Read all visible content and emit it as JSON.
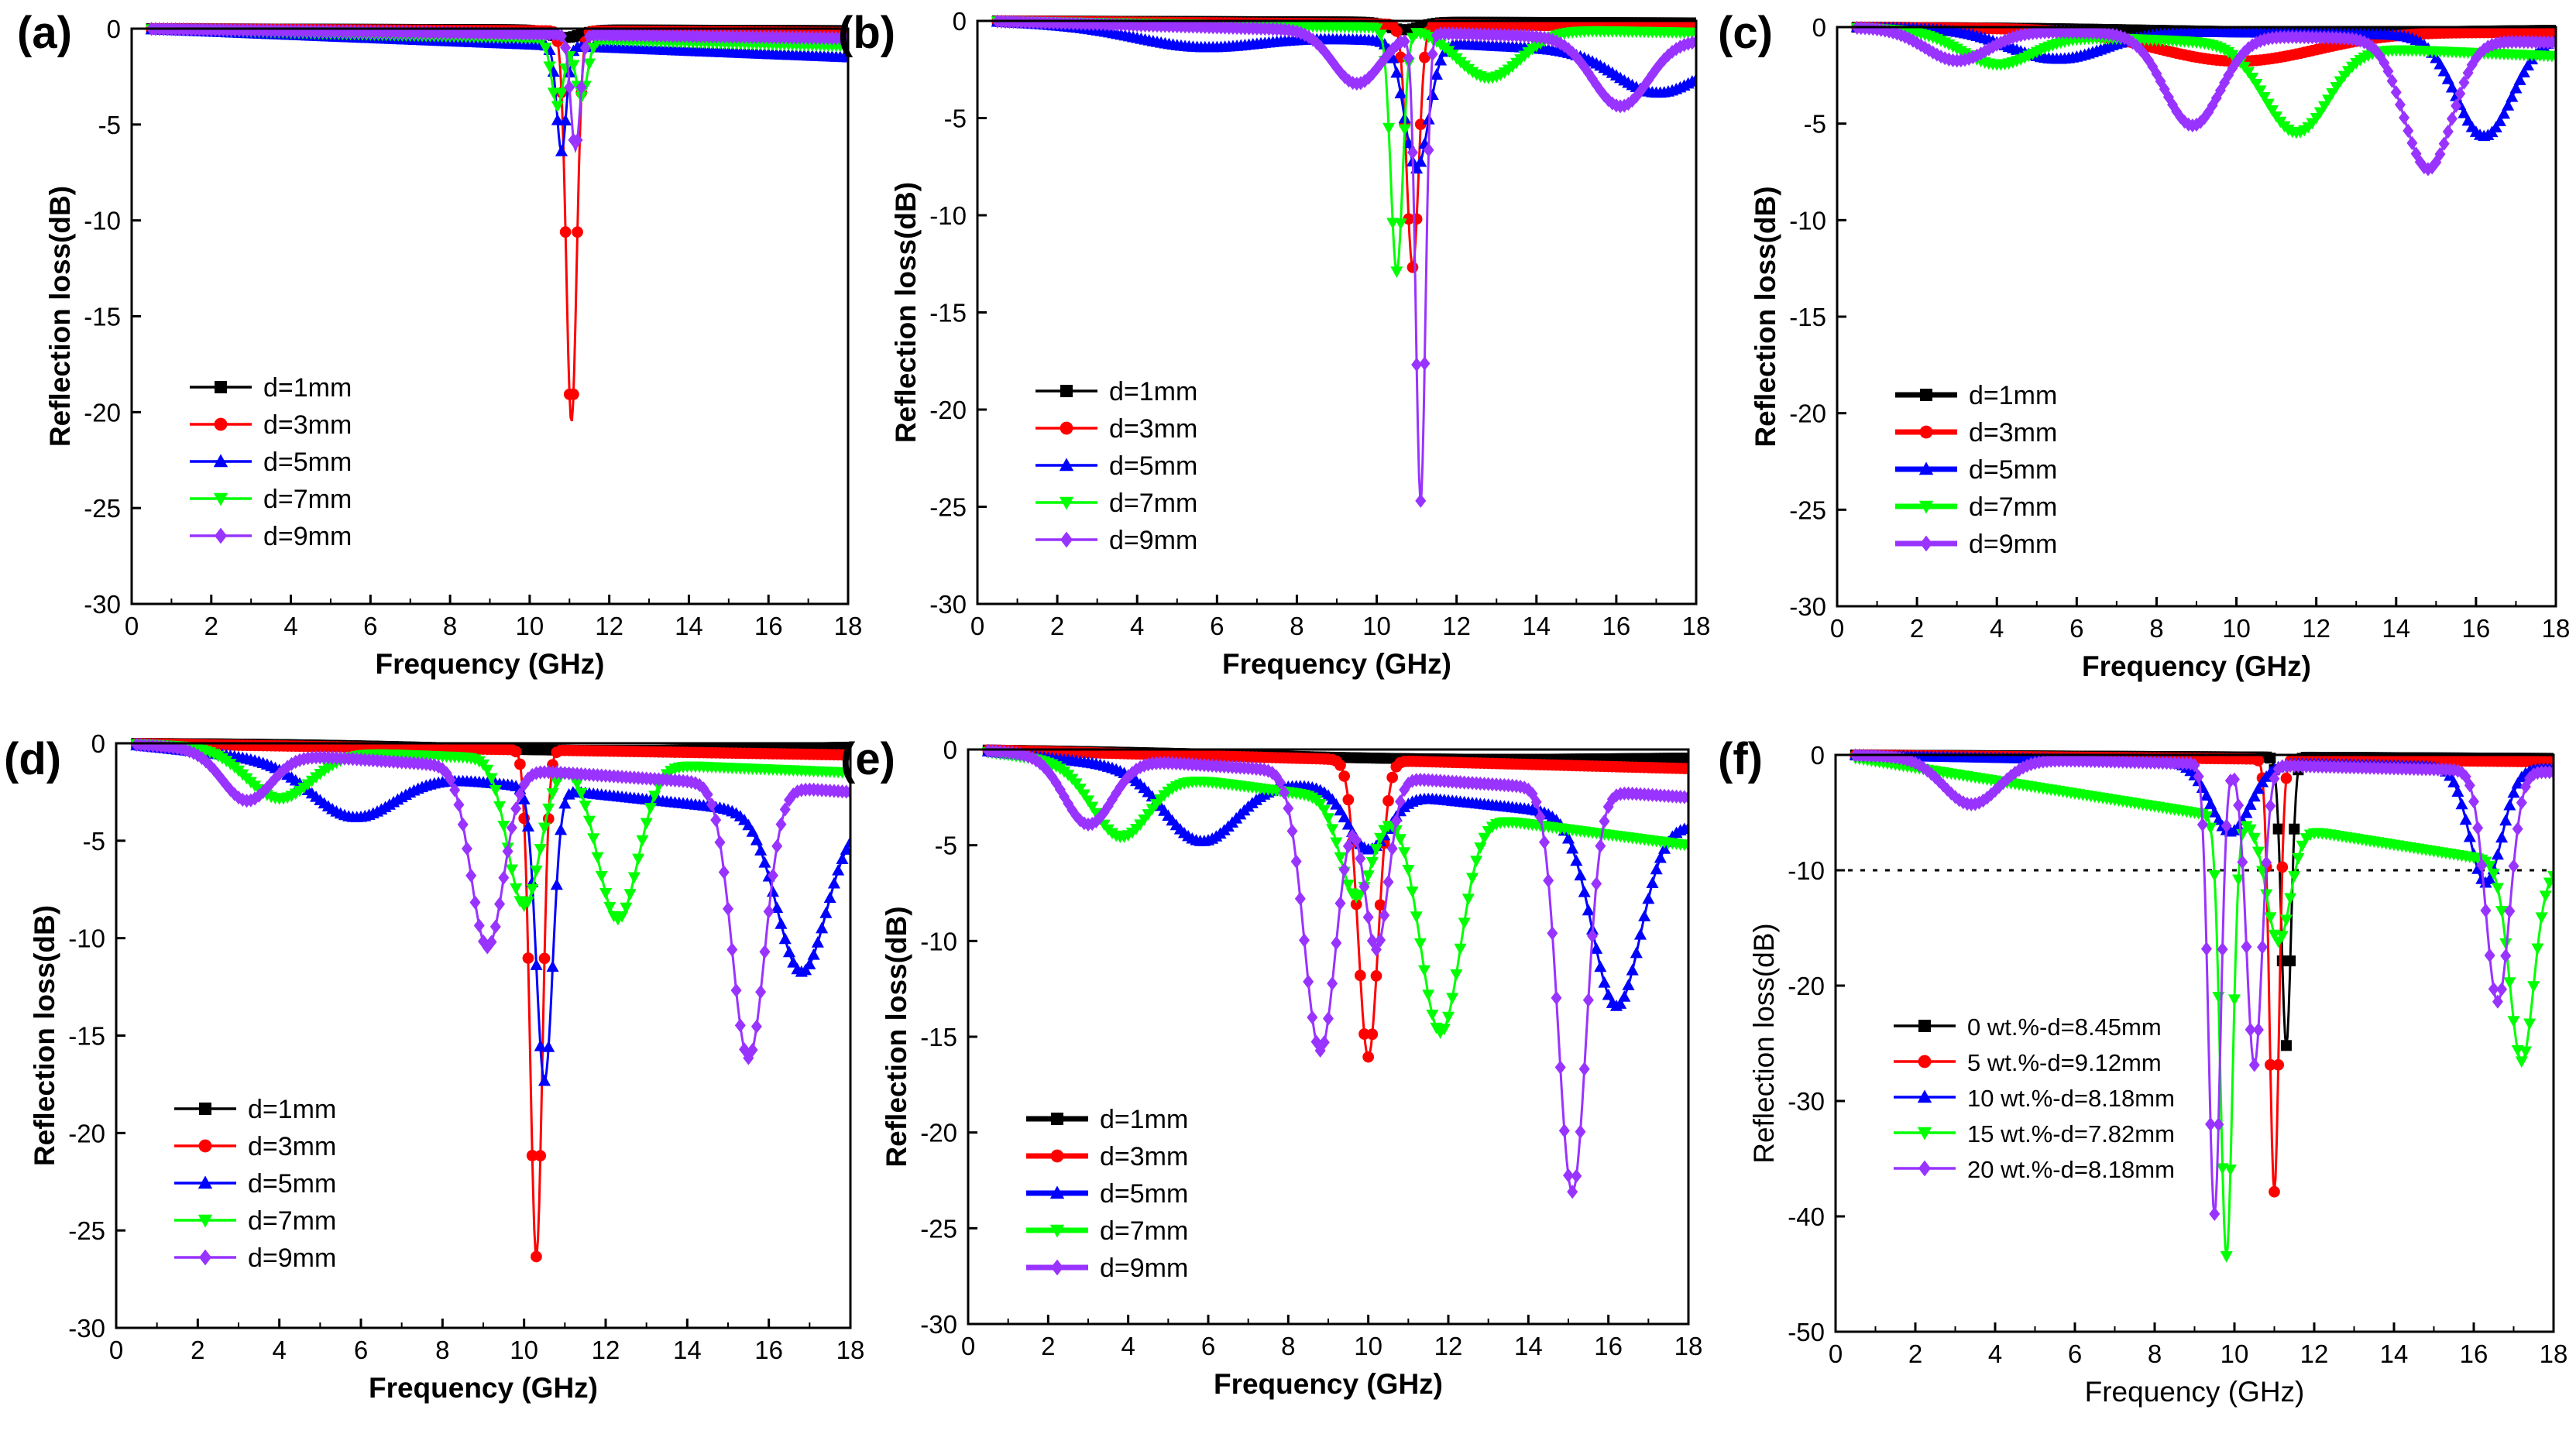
{
  "colors": {
    "d1": "#000000",
    "d3": "#ff0000",
    "d5": "#0000ff",
    "d7": "#00ff00",
    "d9": "#9933ff"
  },
  "chart_data": [
    {
      "panel": "(a)",
      "type": "line",
      "xlabel": "Frequency (GHz)",
      "ylabel": "Reflection loss(dB)",
      "xlim": [
        0,
        18
      ],
      "ylim": [
        -30,
        0
      ],
      "yticks": [
        0,
        -5,
        -10,
        -15,
        -20,
        -25,
        -30
      ],
      "xticks": [
        0,
        2,
        4,
        6,
        8,
        10,
        12,
        14,
        16,
        18
      ],
      "legend": "center-left",
      "series": [
        {
          "name": "d=1mm",
          "color": "#000000",
          "marker": "square",
          "dips": [
            [
              10.9,
              0.4,
              0.4
            ]
          ],
          "end": -0.1
        },
        {
          "name": "d=3mm",
          "color": "#ff0000",
          "marker": "circle",
          "dips": [
            [
              11.05,
              20.4,
              0.13
            ]
          ],
          "end": -0.2
        },
        {
          "name": "d=5mm",
          "color": "#0000ff",
          "marker": "triangle-up",
          "dips": [
            [
              10.8,
              5.5,
              0.12
            ]
          ],
          "end": -1.5
        },
        {
          "name": "d=7mm",
          "color": "#00ff00",
          "marker": "triangle-down",
          "dips": [
            [
              10.7,
              3.5,
              0.15
            ],
            [
              11.3,
              3.0,
              0.15
            ]
          ],
          "end": -0.9
        },
        {
          "name": "d=9mm",
          "color": "#9933ff",
          "marker": "diamond",
          "dips": [
            [
              11.15,
              6.0,
              0.12
            ]
          ],
          "end": -0.5
        }
      ]
    },
    {
      "panel": "(b)",
      "type": "line",
      "xlabel": "Frequency (GHz)",
      "ylabel": "Reflection loss(dB)",
      "xlim": [
        0,
        18
      ],
      "ylim": [
        -30,
        0
      ],
      "yticks": [
        0,
        -5,
        -10,
        -15,
        -20,
        -25,
        -30
      ],
      "xticks": [
        0,
        2,
        4,
        6,
        8,
        10,
        12,
        14,
        16,
        18
      ],
      "legend": "center-left",
      "series": [
        {
          "name": "d=1mm",
          "color": "#000000",
          "marker": "square",
          "dips": [
            [
              10.7,
              0.4,
              0.4
            ]
          ],
          "end": -0.1
        },
        {
          "name": "d=3mm",
          "color": "#ff0000",
          "marker": "circle",
          "dips": [
            [
              10.9,
              12.5,
              0.15
            ]
          ],
          "end": -0.3
        },
        {
          "name": "d=5mm",
          "color": "#0000ff",
          "marker": "triangle-up",
          "dips": [
            [
              5.5,
              0.8,
              1.5
            ],
            [
              11.0,
              6.5,
              0.3
            ],
            [
              17.0,
              2.0,
              1.0
            ]
          ],
          "end": -1.8
        },
        {
          "name": "d=7mm",
          "color": "#00ff00",
          "marker": "triangle-down",
          "dips": [
            [
              10.5,
              12.5,
              0.15
            ],
            [
              12.8,
              2.5,
              0.8
            ]
          ],
          "end": -0.6
        },
        {
          "name": "d=9mm",
          "color": "#9933ff",
          "marker": "diamond",
          "dips": [
            [
              9.5,
              2.7,
              0.6
            ],
            [
              11.1,
              24.0,
              0.12
            ],
            [
              16.1,
              3.5,
              0.7
            ]
          ],
          "end": -1.0
        }
      ]
    },
    {
      "panel": "(c)",
      "type": "line",
      "xlabel": "Frequency (GHz)",
      "ylabel": "Reflection loss(dB)",
      "xlim": [
        0,
        18
      ],
      "ylim": [
        -30,
        0
      ],
      "yticks": [
        0,
        -5,
        -10,
        -15,
        -20,
        -25,
        -30
      ],
      "xticks": [
        0,
        2,
        4,
        6,
        8,
        10,
        12,
        14,
        16,
        18
      ],
      "legend": "center-left",
      "series": [
        {
          "name": "d=1mm",
          "color": "#000000",
          "marker": "square",
          "dips": [
            [
              12.0,
              0.2,
              4.0
            ]
          ],
          "end": -0.1
        },
        {
          "name": "d=3mm",
          "color": "#ff0000",
          "marker": "circle",
          "dips": [
            [
              10.0,
              1.6,
              2.0
            ]
          ],
          "end": -0.3
        },
        {
          "name": "d=5mm",
          "color": "#0000ff",
          "marker": "triangle-up",
          "dips": [
            [
              5.5,
              1.5,
              1.2
            ],
            [
              16.2,
              5.2,
              0.7
            ]
          ],
          "end": -0.5
        },
        {
          "name": "d=7mm",
          "color": "#00ff00",
          "marker": "triangle-down",
          "dips": [
            [
              4.0,
              1.6,
              0.9
            ],
            [
              11.5,
              4.5,
              0.8
            ]
          ],
          "end": -1.5
        },
        {
          "name": "d=9mm",
          "color": "#9933ff",
          "marker": "diamond",
          "dips": [
            [
              3.0,
              1.6,
              0.8
            ],
            [
              8.9,
              4.7,
              0.7
            ],
            [
              14.8,
              6.7,
              0.6
            ]
          ],
          "end": -0.8
        }
      ]
    },
    {
      "panel": "(d)",
      "type": "line",
      "xlabel": "Frequency (GHz)",
      "ylabel": "Reflection loss(dB)",
      "xlim": [
        0,
        18
      ],
      "ylim": [
        -30,
        0
      ],
      "yticks": [
        0,
        -5,
        -10,
        -15,
        -20,
        -25,
        -30
      ],
      "xticks": [
        0,
        2,
        4,
        6,
        8,
        10,
        12,
        14,
        16,
        18
      ],
      "legend": "bottom-left",
      "series": [
        {
          "name": "d=1mm",
          "color": "#000000",
          "marker": "square",
          "dips": [
            [
              12.0,
              0.3,
              4.0
            ]
          ],
          "end": -0.1
        },
        {
          "name": "d=3mm",
          "color": "#ff0000",
          "marker": "circle",
          "dips": [
            [
              10.3,
              26.0,
              0.15
            ]
          ],
          "end": -0.6
        },
        {
          "name": "d=5mm",
          "color": "#0000ff",
          "marker": "triangle-up",
          "dips": [
            [
              5.8,
              2.5,
              1.0
            ],
            [
              10.5,
              15.0,
              0.2
            ],
            [
              16.8,
              8.0,
              0.6
            ]
          ],
          "end": -4.0
        },
        {
          "name": "d=7mm",
          "color": "#00ff00",
          "marker": "triangle-down",
          "dips": [
            [
              4.0,
              2.5,
              0.8
            ],
            [
              10.0,
              7.5,
              0.4
            ],
            [
              12.3,
              8.0,
              0.5
            ]
          ],
          "end": -1.5
        },
        {
          "name": "d=9mm",
          "color": "#9933ff",
          "marker": "diamond",
          "dips": [
            [
              3.2,
              2.5,
              0.6
            ],
            [
              9.1,
              9.2,
              0.4
            ],
            [
              15.5,
              14.0,
              0.4
            ]
          ],
          "end": -2.5
        }
      ]
    },
    {
      "panel": "(e)",
      "type": "line",
      "xlabel": "Frequency (GHz)",
      "ylabel": "Reflection loss(dB)",
      "xlim": [
        0,
        18
      ],
      "ylim": [
        -30,
        0
      ],
      "yticks": [
        0,
        -5,
        -10,
        -15,
        -20,
        -25,
        -30
      ],
      "xticks": [
        0,
        2,
        4,
        6,
        8,
        10,
        12,
        14,
        16,
        18
      ],
      "legend": "bottom-left",
      "series": [
        {
          "name": "d=1mm",
          "color": "#000000",
          "marker": "square",
          "dips": [
            [
              12.0,
              0.3,
              5.0
            ]
          ],
          "end": -0.3
        },
        {
          "name": "d=3mm",
          "color": "#ff0000",
          "marker": "circle",
          "dips": [
            [
              10.0,
              15.5,
              0.25
            ]
          ],
          "end": -1.0
        },
        {
          "name": "d=5mm",
          "color": "#0000ff",
          "marker": "triangle-up",
          "dips": [
            [
              5.8,
              3.5,
              0.9
            ],
            [
              10.0,
              3.0,
              0.5
            ],
            [
              16.2,
              9.8,
              0.6
            ]
          ],
          "end": -4.0
        },
        {
          "name": "d=7mm",
          "color": "#00ff00",
          "marker": "triangle-down",
          "dips": [
            [
              3.8,
              3.5,
              0.7
            ],
            [
              9.7,
              5.0,
              0.4
            ],
            [
              11.8,
              11.5,
              0.5
            ]
          ],
          "end": -5.0
        },
        {
          "name": "d=9mm",
          "color": "#9933ff",
          "marker": "diamond",
          "dips": [
            [
              3.0,
              3.5,
              0.6
            ],
            [
              8.8,
              14.5,
              0.4
            ],
            [
              10.2,
              9.0,
              0.3
            ],
            [
              15.1,
              21.0,
              0.35
            ]
          ],
          "end": -2.5
        }
      ]
    },
    {
      "panel": "(f)",
      "type": "line",
      "xlabel": "Frequency (GHz)",
      "ylabel": "Reflection loss(dB)",
      "xlim": [
        0,
        18
      ],
      "ylim": [
        -50,
        0
      ],
      "yticks": [
        0,
        -10,
        -20,
        -30,
        -40,
        -50
      ],
      "xticks": [
        0,
        2,
        4,
        6,
        8,
        10,
        12,
        14,
        16,
        18
      ],
      "reference_line": -10,
      "legend": "bottom-left",
      "series": [
        {
          "name": "0 wt.%-d=8.45mm",
          "color": "#000000",
          "marker": "square",
          "dips": [
            [
              11.3,
              25.0,
              0.12
            ]
          ],
          "end": -0.3
        },
        {
          "name": "5 wt.%-d=9.12mm",
          "color": "#ff0000",
          "marker": "circle",
          "dips": [
            [
              11.0,
              37.5,
              0.12
            ]
          ],
          "end": -0.6
        },
        {
          "name": "10 wt.%-d=8.18mm",
          "color": "#0000ff",
          "marker": "triangle-up",
          "dips": [
            [
              9.9,
              6.0,
              0.5
            ],
            [
              16.3,
              10.0,
              0.4
            ]
          ],
          "end": -1.2
        },
        {
          "name": "15 wt.%-d=7.82mm",
          "color": "#00ff00",
          "marker": "triangle-down",
          "dips": [
            [
              9.8,
              38.0,
              0.15
            ],
            [
              11.1,
              10.0,
              0.3
            ],
            [
              17.2,
              17.0,
              0.3
            ]
          ],
          "end": -10.0
        },
        {
          "name": "20 wt.%-d=8.18mm",
          "color": "#9933ff",
          "marker": "diamond",
          "dips": [
            [
              3.4,
              4.0,
              0.7
            ],
            [
              9.5,
              39.0,
              0.15
            ],
            [
              10.5,
              26.0,
              0.2
            ],
            [
              16.6,
              20.0,
              0.3
            ]
          ],
          "end": -1.5
        }
      ]
    }
  ]
}
